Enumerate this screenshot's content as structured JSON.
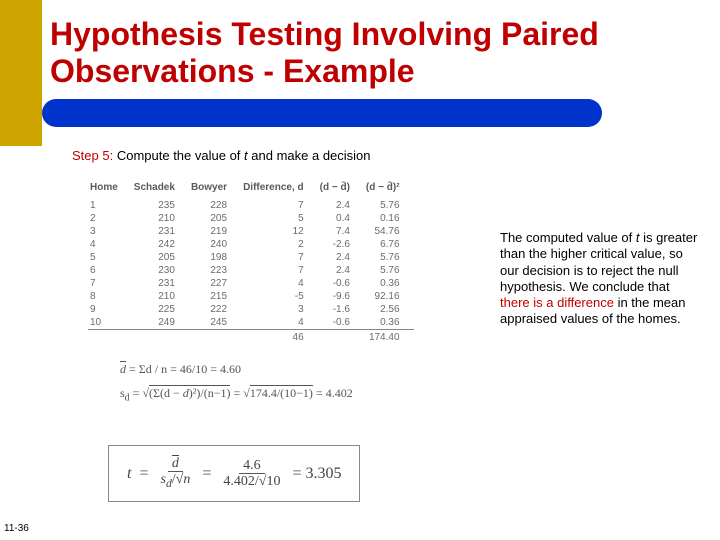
{
  "title": "Hypothesis Testing Involving Paired Observations - Example",
  "step": {
    "label": "Step 5:",
    "text_a": "Compute the value of ",
    "t": "t",
    "text_b": " and make a decision"
  },
  "table": {
    "headers": [
      "Home",
      "Schadek",
      "Bowyer",
      "Difference, d",
      "(d − d̄)",
      "(d − d̄)²"
    ],
    "rows": [
      [
        "1",
        "235",
        "228",
        "7",
        "2.4",
        "5.76"
      ],
      [
        "2",
        "210",
        "205",
        "5",
        "0.4",
        "0.16"
      ],
      [
        "3",
        "231",
        "219",
        "12",
        "7.4",
        "54.76"
      ],
      [
        "4",
        "242",
        "240",
        "2",
        "-2.6",
        "6.76"
      ],
      [
        "5",
        "205",
        "198",
        "7",
        "2.4",
        "5.76"
      ],
      [
        "6",
        "230",
        "223",
        "7",
        "2.4",
        "5.76"
      ],
      [
        "7",
        "231",
        "227",
        "4",
        "-0.6",
        "0.36"
      ],
      [
        "8",
        "210",
        "215",
        "-5",
        "-9.6",
        "92.16"
      ],
      [
        "9",
        "225",
        "222",
        "3",
        "-1.6",
        "2.56"
      ],
      [
        "10",
        "249",
        "245",
        "4",
        "-0.6",
        "0.36"
      ]
    ],
    "sums": {
      "d": "46",
      "sq": "174.40"
    }
  },
  "formulas": {
    "mean": "d̄ = Σd / n = 46 / 10 = 4.60",
    "sd_left": "s_d = √(Σ(d − d̄)² / (n − 1)) = √(174.4 / (10 − 1)) = 4.402"
  },
  "t_formula": {
    "lhs": "t",
    "eq": "=",
    "num1": "d̄",
    "den1": "s_d /√n",
    "num2": "4.6",
    "den2": "4.402/√10",
    "result": "= 3.305"
  },
  "explain": {
    "a": "The computed value of ",
    "t": "t",
    "b": " is greater than the higher critical value, so our decision is to reject the null hypothesis. We conclude that ",
    "c": "there is a difference",
    "d": " in the mean appraised values of the homes."
  },
  "page_num": "11-36",
  "colors": {
    "title": "#c00000",
    "gold": "#cea500",
    "blue": "#0033cc"
  }
}
